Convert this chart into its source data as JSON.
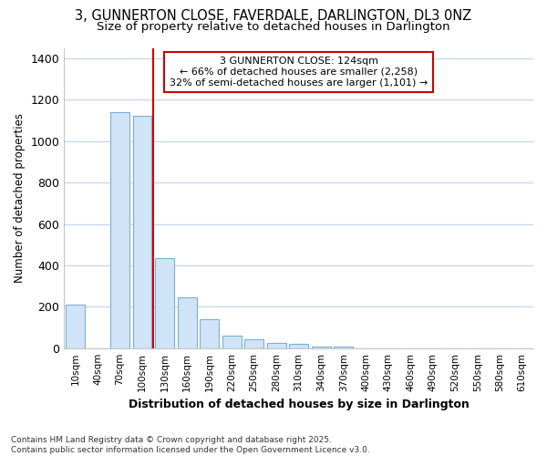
{
  "title": "3, GUNNERTON CLOSE, FAVERDALE, DARLINGTON, DL3 0NZ",
  "subtitle": "Size of property relative to detached houses in Darlington",
  "xlabel": "Distribution of detached houses by size in Darlington",
  "ylabel": "Number of detached properties",
  "categories": [
    "10sqm",
    "40sqm",
    "70sqm",
    "100sqm",
    "130sqm",
    "160sqm",
    "190sqm",
    "220sqm",
    "250sqm",
    "280sqm",
    "310sqm",
    "340sqm",
    "370sqm",
    "400sqm",
    "430sqm",
    "460sqm",
    "490sqm",
    "520sqm",
    "550sqm",
    "580sqm",
    "610sqm"
  ],
  "values": [
    210,
    0,
    1140,
    1120,
    435,
    245,
    140,
    60,
    45,
    25,
    20,
    10,
    10,
    0,
    0,
    0,
    0,
    0,
    0,
    0,
    0
  ],
  "bar_color": "#d0e4f7",
  "bar_edge_color": "#7aafd4",
  "vline_color": "#cc0000",
  "annotation_text": "3 GUNNERTON CLOSE: 124sqm\n← 66% of detached houses are smaller (2,258)\n32% of semi-detached houses are larger (1,101) →",
  "annotation_box_color": "#ffffff",
  "annotation_box_edge": "#cc0000",
  "ylim": [
    0,
    1450
  ],
  "yticks": [
    0,
    200,
    400,
    600,
    800,
    1000,
    1200,
    1400
  ],
  "footer_line1": "Contains HM Land Registry data © Crown copyright and database right 2025.",
  "footer_line2": "Contains public sector information licensed under the Open Government Licence v3.0.",
  "bg_color": "#ffffff",
  "grid_color": "#c8d8f0",
  "title_fontsize": 10.5,
  "subtitle_fontsize": 9.5
}
